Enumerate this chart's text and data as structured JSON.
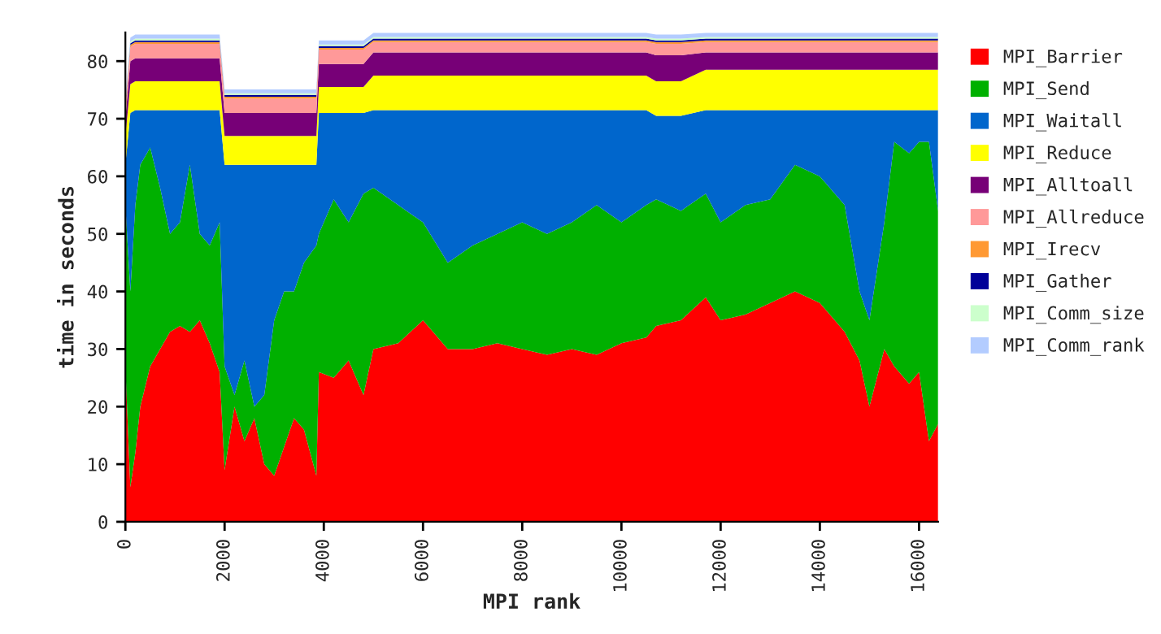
{
  "chart_data": {
    "type": "area",
    "stacked": true,
    "xlabel": "MPI rank",
    "ylabel": "time in seconds",
    "x": [
      0,
      100,
      200,
      300,
      500,
      700,
      900,
      1100,
      1300,
      1500,
      1700,
      1900,
      2000,
      2200,
      2400,
      2600,
      2800,
      3000,
      3200,
      3400,
      3600,
      3850,
      3900,
      4200,
      4500,
      4800,
      5000,
      5500,
      6000,
      6500,
      7000,
      7500,
      8000,
      8500,
      9000,
      9500,
      10000,
      10500,
      10700,
      11200,
      11700,
      12000,
      12500,
      13000,
      13500,
      14000,
      14500,
      14800,
      15000,
      15300,
      15500,
      15800,
      16000,
      16200,
      16384
    ],
    "xlim": [
      0,
      16384
    ],
    "xticks": [
      0,
      2000,
      4000,
      6000,
      8000,
      10000,
      12000,
      14000,
      16000
    ],
    "ylim": [
      0,
      85
    ],
    "yticks": [
      0,
      10,
      20,
      30,
      40,
      50,
      60,
      70,
      80
    ],
    "grid": false,
    "legend": "right",
    "series": [
      {
        "name": "MPI_Barrier",
        "color": "#ff0000",
        "values": [
          27,
          6,
          12,
          20,
          27,
          30,
          33,
          34,
          33,
          35,
          31,
          26,
          9,
          20,
          14,
          18,
          10,
          8,
          13,
          18,
          16,
          8,
          26,
          25,
          28,
          22,
          30,
          31,
          35,
          30,
          30,
          31,
          30,
          29,
          30,
          29,
          31,
          32,
          34,
          35,
          39,
          35,
          36,
          38,
          40,
          38,
          33,
          28,
          20,
          30,
          27,
          24,
          26,
          14,
          17
        ]
      },
      {
        "name": "MPI_Send",
        "color": "#00b000",
        "values": [
          28,
          34,
          43,
          42,
          38,
          28,
          17,
          18,
          29,
          15,
          17,
          26,
          18,
          2,
          14,
          2,
          12,
          27,
          27,
          22,
          29,
          40,
          24,
          31,
          24,
          35,
          28,
          24,
          17,
          15,
          18,
          19,
          22,
          21,
          22,
          26,
          21,
          23,
          22,
          19,
          18,
          17,
          19,
          18,
          22,
          22,
          22,
          12,
          15,
          22,
          39,
          40,
          40,
          52,
          37
        ]
      },
      {
        "name": "MPI_Waitall",
        "color": "#0066cc",
        "values": [
          7,
          31,
          16.5,
          9.5,
          6.5,
          13.5,
          21.5,
          19.5,
          9.5,
          21.5,
          23.5,
          19.5,
          35,
          40,
          34,
          42,
          40,
          27,
          22,
          22,
          17,
          14,
          21,
          15,
          19,
          14,
          13.5,
          16.5,
          19.5,
          26.5,
          23.5,
          21.5,
          19.5,
          21.5,
          19.5,
          16.5,
          19.5,
          16.5,
          14.5,
          16.5,
          14.5,
          19.5,
          16.5,
          15.5,
          9.5,
          11.5,
          16.5,
          31.5,
          36.5,
          19.5,
          5.5,
          7.5,
          5.5,
          5.5,
          17.5
        ]
      },
      {
        "name": "MPI_Reduce",
        "color": "#ffff00",
        "values": [
          5,
          5,
          5,
          5,
          5,
          5,
          5,
          5,
          5,
          5,
          5,
          5,
          5,
          5,
          5,
          5,
          5,
          5,
          5,
          5,
          5,
          5,
          4.5,
          4.5,
          4.5,
          4.5,
          6,
          6,
          6,
          6,
          6,
          6,
          6,
          6,
          6,
          6,
          6,
          6,
          6,
          6,
          7,
          7,
          7,
          7,
          7,
          7,
          7,
          7,
          7,
          7,
          7,
          7,
          7,
          7,
          7
        ]
      },
      {
        "name": "MPI_Alltoall",
        "color": "#770077",
        "values": [
          3,
          4,
          4,
          4,
          4,
          4,
          4,
          4,
          4,
          4,
          4,
          4,
          4,
          4,
          4,
          4,
          4,
          4,
          4,
          4,
          4,
          4,
          4,
          4,
          4,
          4,
          4,
          4,
          4,
          4,
          4,
          4,
          4,
          4,
          4,
          4,
          4,
          4,
          4.5,
          4.5,
          3,
          3,
          3,
          3,
          3,
          3,
          3,
          3,
          3,
          3,
          3,
          3,
          3,
          3,
          3
        ]
      },
      {
        "name": "MPI_Allreduce",
        "color": "#ff9999",
        "values": [
          2,
          2.5,
          2.5,
          2.5,
          2.5,
          2.5,
          2.5,
          2.5,
          2.5,
          2.5,
          2.5,
          2.5,
          2.5,
          2.5,
          2.5,
          2.5,
          2.5,
          2.5,
          2.5,
          2.5,
          2.5,
          2.5,
          2.5,
          2.5,
          2.5,
          2.5,
          1.8,
          1.8,
          1.8,
          1.8,
          1.8,
          1.8,
          1.8,
          1.8,
          1.8,
          1.8,
          1.8,
          1.8,
          2,
          2,
          1.8,
          1.8,
          1.8,
          1.8,
          1.8,
          1.8,
          1.8,
          1.8,
          1.8,
          1.8,
          1.8,
          1.8,
          1.8,
          1.8,
          1.8
        ]
      },
      {
        "name": "MPI_Irecv",
        "color": "#ff9933",
        "values": [
          0.3,
          0.3,
          0.3,
          0.3,
          0.3,
          0.3,
          0.3,
          0.3,
          0.3,
          0.3,
          0.3,
          0.3,
          0.3,
          0.3,
          0.3,
          0.3,
          0.3,
          0.3,
          0.3,
          0.3,
          0.3,
          0.3,
          0.3,
          0.3,
          0.3,
          0.3,
          0.3,
          0.3,
          0.3,
          0.3,
          0.3,
          0.3,
          0.3,
          0.3,
          0.3,
          0.3,
          0.3,
          0.3,
          0.3,
          0.3,
          0.3,
          0.3,
          0.3,
          0.3,
          0.3,
          0.3,
          0.3,
          0.3,
          0.3,
          0.3,
          0.3,
          0.3,
          0.3,
          0.3,
          0.3
        ]
      },
      {
        "name": "MPI_Gather",
        "color": "#000099",
        "values": [
          0.3,
          0.3,
          0.3,
          0.3,
          0.3,
          0.3,
          0.3,
          0.3,
          0.3,
          0.3,
          0.3,
          0.3,
          0.3,
          0.3,
          0.3,
          0.3,
          0.3,
          0.3,
          0.3,
          0.3,
          0.3,
          0.3,
          0.3,
          0.3,
          0.3,
          0.3,
          0.3,
          0.3,
          0.3,
          0.3,
          0.3,
          0.3,
          0.3,
          0.3,
          0.3,
          0.3,
          0.3,
          0.3,
          0.3,
          0.3,
          0.3,
          0.3,
          0.3,
          0.3,
          0.3,
          0.3,
          0.3,
          0.3,
          0.3,
          0.3,
          0.3,
          0.3,
          0.3,
          0.3,
          0.3
        ]
      },
      {
        "name": "MPI_Comm_size",
        "color": "#ccffcc",
        "values": [
          0.3,
          0.3,
          0.3,
          0.3,
          0.3,
          0.3,
          0.3,
          0.3,
          0.3,
          0.3,
          0.3,
          0.3,
          0.3,
          0.3,
          0.3,
          0.3,
          0.3,
          0.3,
          0.3,
          0.3,
          0.3,
          0.3,
          0.3,
          0.3,
          0.3,
          0.3,
          0.3,
          0.3,
          0.3,
          0.3,
          0.3,
          0.3,
          0.3,
          0.3,
          0.3,
          0.3,
          0.3,
          0.3,
          0.3,
          0.3,
          0.3,
          0.3,
          0.3,
          0.3,
          0.3,
          0.3,
          0.3,
          0.3,
          0.3,
          0.3,
          0.3,
          0.3,
          0.3,
          0.3,
          0.3
        ]
      },
      {
        "name": "MPI_Comm_rank",
        "color": "#b3ccff",
        "values": [
          0.7,
          0.7,
          0.7,
          0.7,
          0.7,
          0.7,
          0.7,
          0.7,
          0.7,
          0.7,
          0.7,
          0.7,
          0.7,
          0.7,
          0.7,
          0.7,
          0.7,
          0.7,
          0.7,
          0.7,
          0.7,
          0.7,
          0.7,
          0.7,
          0.7,
          0.7,
          0.7,
          0.7,
          0.7,
          0.7,
          0.7,
          0.7,
          0.7,
          0.7,
          0.7,
          0.7,
          0.7,
          0.7,
          0.7,
          0.7,
          0.7,
          0.7,
          0.7,
          0.7,
          0.7,
          0.7,
          0.7,
          0.7,
          0.7,
          0.7,
          0.7,
          0.7,
          0.7,
          0.7,
          0.7
        ]
      }
    ]
  }
}
